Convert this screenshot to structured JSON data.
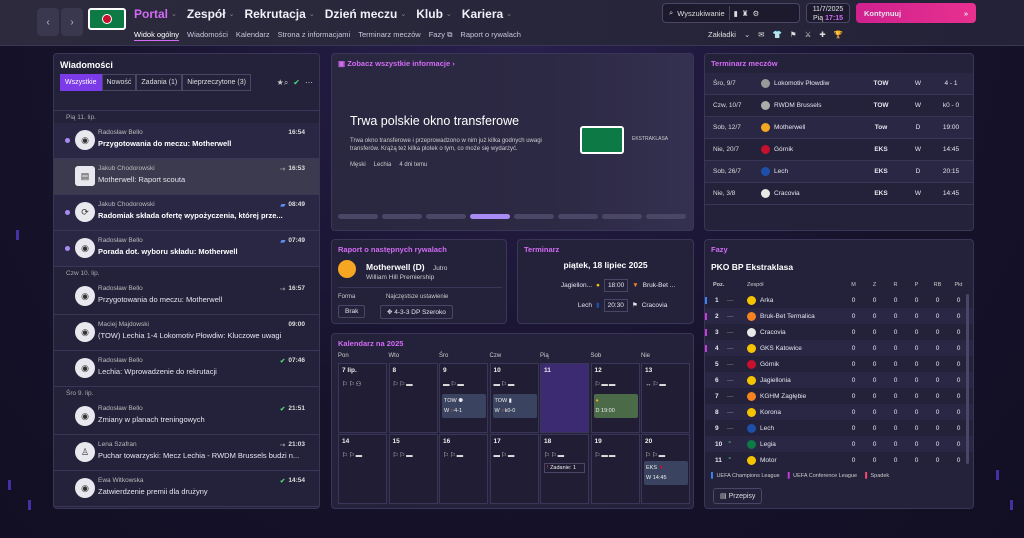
{
  "topbar": {
    "nav": [
      {
        "label": "Portal",
        "active": true
      },
      {
        "label": "Zespół"
      },
      {
        "label": "Rekrutacja"
      },
      {
        "label": "Dzień meczu"
      },
      {
        "label": "Klub"
      },
      {
        "label": "Kariera"
      }
    ],
    "subnav": [
      "Widok ogólny",
      "Wiadomości",
      "Kalendarz",
      "Strona z informacjami",
      "Terminarz meczów",
      "Fazy",
      "Raport o rywalach"
    ],
    "search_label": "Wyszukiwanie",
    "date": "11/7/2025",
    "day": "Pią",
    "time": "17:15",
    "continue_label": "Kontynuuj",
    "bookmarks_label": "Zakładki"
  },
  "messages": {
    "title": "Wiadomości",
    "tabs": [
      "Wszystkie",
      "Nowość",
      "Zadania (1)",
      "Nieprzeczytone (3)"
    ],
    "groups": [
      {
        "day": "Pią 11. lip.",
        "items": [
          {
            "from": "Radosław Bello",
            "subject": "Przygotowania do meczu: Motherwell",
            "time": "16:54",
            "unread": true
          },
          {
            "from": "Jakub Chodorowski",
            "subject": "Motherwell: Raport scouta",
            "time": "16:53",
            "selected": true
          },
          {
            "from": "Jakub Chodorowski",
            "subject": "Radomiak składa ofertę wypożyczenia, której prze...",
            "time": "08:49",
            "unread": true
          },
          {
            "from": "Radosław Bello",
            "subject": "Porada dot. wyboru składu: Motherwell",
            "time": "07:49",
            "unread": true
          }
        ]
      },
      {
        "day": "Czw 10. lip.",
        "items": [
          {
            "from": "Radosław Bello",
            "subject": "Przygotowania do meczu: Motherwell",
            "time": "16:57"
          },
          {
            "from": "Maciej Majdowski",
            "subject": "(TOW) Lechia 1-4 Lokomotiv Płowdiw: Kluczowe uwagi",
            "time": "09:00"
          },
          {
            "from": "Radosław Bello",
            "subject": "Lechia: Wprowadzenie do rekrutacji",
            "time": "07:46"
          }
        ]
      },
      {
        "day": "Śro 9. lip.",
        "items": [
          {
            "from": "Radosław Bello",
            "subject": "Zmiany w planach treningowych",
            "time": "21:51"
          },
          {
            "from": "Lena Szafran",
            "subject": "Puchar towarzyski: Mecz Lechia - RWDM Brussels budzi n...",
            "time": "21:03"
          },
          {
            "from": "Ewa Witkowska",
            "subject": "Zatwierdzenie premii dla drużyny",
            "time": "14:54"
          }
        ]
      }
    ]
  },
  "news": {
    "link": "Zobacz wszystkie informacje",
    "headline": "Trwa polskie okno transferowe",
    "body": "Trwa okno transferowe i przeprowadzono w nim już kilka godnych uwagi transferów. Krążą też kilka plotek o tym, co może się wydarzyć.",
    "tags": [
      "Męski",
      "Lechia",
      "4 dni temu"
    ],
    "league_logo_text": "EKSTRAKLASA"
  },
  "fixtures": {
    "title": "Terminarz meczów",
    "rows": [
      {
        "date": "Śro, 9/7",
        "team": "Lokomotiv Płowdiw",
        "comp": "TOW",
        "venue": "W",
        "result": "4 - 1",
        "color": "#999"
      },
      {
        "date": "Czw, 10/7",
        "team": "RWDM Brussels",
        "comp": "TOW",
        "venue": "W",
        "result": "k0 - 0",
        "color": "#aaa"
      },
      {
        "date": "Sob, 12/7",
        "team": "Motherwell",
        "comp": "Tow",
        "venue": "D",
        "result": "19:00",
        "color": "#f5a623"
      },
      {
        "date": "Nie, 20/7",
        "team": "Górnik",
        "comp": "EKS",
        "venue": "W",
        "result": "14:45",
        "color": "#c8102e"
      },
      {
        "date": "Sob, 26/7",
        "team": "Lech",
        "comp": "EKS",
        "venue": "D",
        "result": "20:15",
        "color": "#1e4fa8"
      },
      {
        "date": "Nie, 3/8",
        "team": "Cracovia",
        "comp": "EKS",
        "venue": "W",
        "result": "14:45",
        "color": "#e8e8e8"
      }
    ]
  },
  "rival": {
    "title": "Raport o następnych rywalach",
    "team": "Motherwell (D)",
    "when": "Jutro",
    "stadium": "William Hill Premiership",
    "form_label": "Forma",
    "form": "Brak",
    "setup_label": "Najczęstsze ustawienie",
    "setup": "4-3-3 DP Szeroko"
  },
  "schedule": {
    "title": "Terminarz",
    "date": "piątek, 18 lipiec 2025",
    "matches": [
      {
        "home": "Jagiellon...",
        "time": "18:00",
        "away": "Bruk-Bet ..."
      },
      {
        "home": "Lech",
        "time": "20:30",
        "away": "Cracovia"
      }
    ]
  },
  "calendar": {
    "title": "Kalendarz na 2025",
    "weekdays": [
      "Pon",
      "Wto",
      "Śro",
      "Czw",
      "Pią",
      "Sob",
      "Nie"
    ],
    "week1": [
      "7 lip.",
      "8",
      "9",
      "10",
      "11",
      "12",
      "13"
    ],
    "week2": [
      "14",
      "15",
      "16",
      "17",
      "18",
      "19",
      "20"
    ],
    "cards": {
      "wed": {
        "comp": "TOW",
        "venue": "W",
        "result": "4-1"
      },
      "thu": {
        "comp": "TOW",
        "venue": "W",
        "result": "k0-0"
      },
      "sat": {
        "venue": "D",
        "time": "19:00"
      },
      "sun2": {
        "comp": "EKS",
        "venue": "W",
        "time": "14:45"
      }
    },
    "task_note": "Zadanie: 1"
  },
  "table": {
    "title": "Fazy",
    "league": "PKO BP Ekstraklasa",
    "headers": [
      "Poz.",
      "Zespół",
      "M",
      "Z",
      "R",
      "P",
      "RB",
      "Pkt"
    ],
    "rows": [
      {
        "pos": "1",
        "team": "Arka",
        "color": "#f5c400"
      },
      {
        "pos": "2",
        "team": "Bruk-Bet Termalica",
        "color": "#f58220"
      },
      {
        "pos": "3",
        "team": "Cracovia",
        "color": "#e8e8e8"
      },
      {
        "pos": "4",
        "team": "GKS Katowice",
        "color": "#f5c400"
      },
      {
        "pos": "5",
        "team": "Górnik",
        "color": "#c8102e"
      },
      {
        "pos": "6",
        "team": "Jagiellonia",
        "color": "#f5c400"
      },
      {
        "pos": "7",
        "team": "KGHM Zagłębie",
        "color": "#f58220"
      },
      {
        "pos": "8",
        "team": "Korona",
        "color": "#f5c400"
      },
      {
        "pos": "9",
        "team": "Lech",
        "color": "#1e4fa8"
      },
      {
        "pos": "10",
        "team": "Legia",
        "color": "#0d7a45"
      },
      {
        "pos": "11",
        "team": "Motor",
        "color": "#f5c400"
      }
    ],
    "legend": [
      "UEFA Champions League",
      "UEFA Conference League",
      "Spadek"
    ],
    "rules_label": "Przepisy"
  }
}
